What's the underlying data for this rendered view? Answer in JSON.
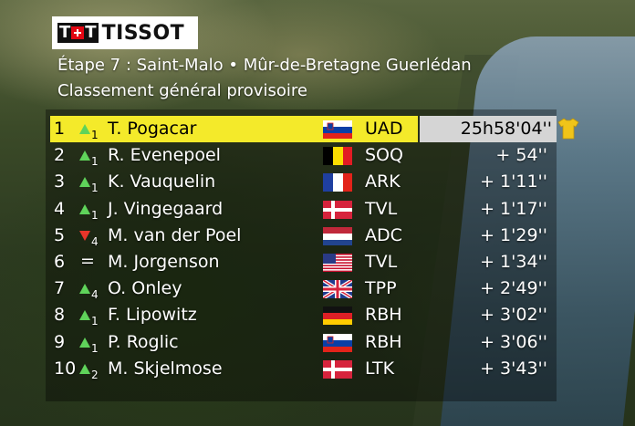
{
  "brand": {
    "logo_text": "TISSOT",
    "logo_prefix_left": "T",
    "logo_prefix_right": "T"
  },
  "header": {
    "stage": "Étape 7 : Saint-Malo • Mûr-de-Bretagne Guerlédan",
    "subtitle": "Classement général provisoire"
  },
  "colors": {
    "leader_row": "#f4ea2a",
    "leader_time_bg": "#d5d5d5",
    "up": "#5fd35a",
    "down": "#e8352a"
  },
  "standings": [
    {
      "pos": "1",
      "trend": "up",
      "delta": "1",
      "rider": "T. Pogacar",
      "flag": "slovenia-flag",
      "team": "UAD",
      "time": "25h58'04''",
      "jersey": "yellow-jersey-icon"
    },
    {
      "pos": "2",
      "trend": "up",
      "delta": "1",
      "rider": "R. Evenepoel",
      "flag": "belgium-flag",
      "team": "SOQ",
      "time": "+ 54''"
    },
    {
      "pos": "3",
      "trend": "up",
      "delta": "1",
      "rider": "K. Vauquelin",
      "flag": "france-flag",
      "team": "ARK",
      "time": "+ 1'11''"
    },
    {
      "pos": "4",
      "trend": "up",
      "delta": "1",
      "rider": "J. Vingegaard",
      "flag": "denmark-flag",
      "team": "TVL",
      "time": "+ 1'17''"
    },
    {
      "pos": "5",
      "trend": "down",
      "delta": "4",
      "rider": "M. van der Poel",
      "flag": "netherlands-flag",
      "team": "ADC",
      "time": "+ 1'29''"
    },
    {
      "pos": "6",
      "trend": "same",
      "delta": "",
      "rider": "M. Jorgenson",
      "flag": "usa-flag",
      "team": "TVL",
      "time": "+ 1'34''"
    },
    {
      "pos": "7",
      "trend": "up",
      "delta": "4",
      "rider": "O. Onley",
      "flag": "uk-flag",
      "team": "TPP",
      "time": "+ 2'49''"
    },
    {
      "pos": "8",
      "trend": "up",
      "delta": "1",
      "rider": "F. Lipowitz",
      "flag": "germany-flag",
      "team": "RBH",
      "time": "+ 3'02''"
    },
    {
      "pos": "9",
      "trend": "up",
      "delta": "1",
      "rider": "P. Roglic",
      "flag": "slovenia-flag",
      "team": "RBH",
      "time": "+ 3'06''"
    },
    {
      "pos": "10",
      "trend": "up",
      "delta": "2",
      "rider": "M. Skjelmose",
      "flag": "denmark-flag",
      "team": "LTK",
      "time": "+ 3'43''"
    }
  ]
}
